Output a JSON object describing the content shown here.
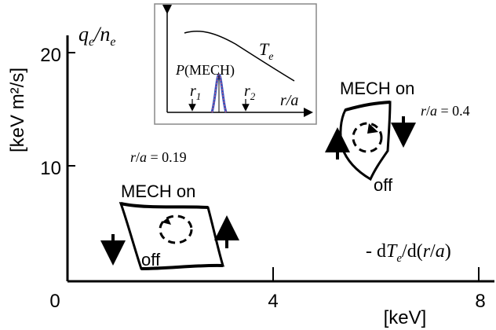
{
  "chart_data": {
    "type": "scatter",
    "title": "",
    "ylabel_axis": "[keV m²/s]",
    "ylabel_corner": "q_e/n_e",
    "xlabel_unit": "[keV]",
    "xlabel_expr": "- dT_e/d(r/a)",
    "xlim": [
      0,
      8
    ],
    "ylim": [
      0,
      22
    ],
    "x_ticks": [
      "0",
      "4",
      "8"
    ],
    "y_ticks": [
      "10",
      "20"
    ],
    "grid": false,
    "loops": [
      {
        "name": "r/a = 0.19",
        "label_on": "MECH on",
        "label_off": "off",
        "label_radius": "r/a = 0.19",
        "points": [
          [
            1.0,
            6.6
          ],
          [
            3.1,
            6.8
          ],
          [
            3.6,
            1.1
          ],
          [
            1.5,
            1.4
          ]
        ]
      },
      {
        "name": "r/a = 0.4",
        "label_on": "MECH on",
        "label_off": "off",
        "label_radius": "r/a = 0.4",
        "points": [
          [
            5.3,
            15.0
          ],
          [
            6.5,
            15.3
          ],
          [
            6.4,
            12.0
          ],
          [
            5.6,
            9.0
          ],
          [
            5.2,
            12.0
          ]
        ]
      }
    ],
    "inset": {
      "curve_label": "T_e",
      "power_label": "P(MECH)",
      "r1_label": "r_1",
      "r2_label": "r_2",
      "axis_label": "r/a"
    }
  }
}
